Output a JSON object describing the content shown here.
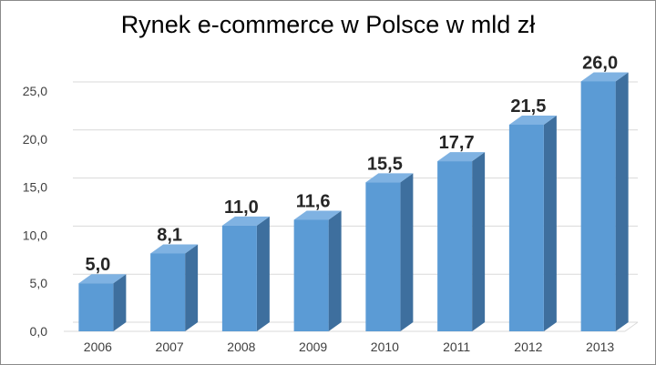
{
  "chart_data": {
    "type": "bar",
    "title": "Rynek  e-commerce w Polsce w mld zł",
    "categories": [
      "2006",
      "2007",
      "2008",
      "2009",
      "2010",
      "2011",
      "2012",
      "2013"
    ],
    "values": [
      5.0,
      8.1,
      11.0,
      11.6,
      15.5,
      17.7,
      21.5,
      26.0
    ],
    "value_labels": [
      "5,0",
      "8,1",
      "11,0",
      "11,6",
      "15,5",
      "17,7",
      "21,5",
      "26,0"
    ],
    "y_ticks": [
      0,
      5,
      10,
      15,
      20,
      25
    ],
    "y_tick_labels": [
      "0,0",
      "5,0",
      "10,0",
      "15,0",
      "20,0",
      "25,0"
    ],
    "ylim": [
      0,
      25
    ],
    "xlabel": "",
    "ylabel": "",
    "grid": true,
    "legend": "none",
    "bar_color": "#5b9bd5",
    "bar_side_color": "#3e6f9e",
    "bar_top_color": "#7fb2e2",
    "gridline_color": "#d9d9d9"
  }
}
